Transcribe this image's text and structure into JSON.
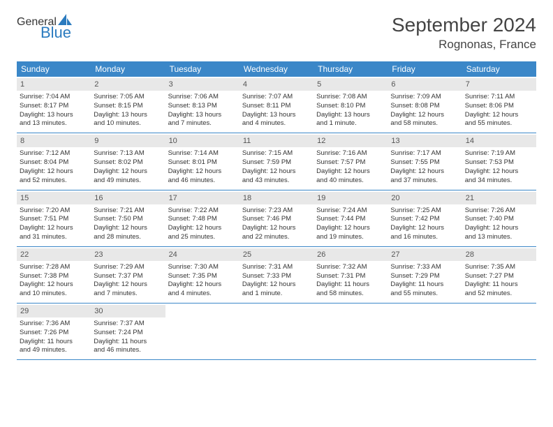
{
  "logo": {
    "top": "General",
    "bottom": "Blue",
    "icon_color": "#2b7bbf"
  },
  "title": "September 2024",
  "location": "Rognonas, France",
  "colors": {
    "header_bg": "#3b87c8",
    "header_text": "#ffffff",
    "daynum_bg": "#e8e8e8",
    "row_border": "#3b87c8"
  },
  "weekdays": [
    "Sunday",
    "Monday",
    "Tuesday",
    "Wednesday",
    "Thursday",
    "Friday",
    "Saturday"
  ],
  "weeks": [
    [
      {
        "n": "1",
        "sr": "Sunrise: 7:04 AM",
        "ss": "Sunset: 8:17 PM",
        "d1": "Daylight: 13 hours",
        "d2": "and 13 minutes."
      },
      {
        "n": "2",
        "sr": "Sunrise: 7:05 AM",
        "ss": "Sunset: 8:15 PM",
        "d1": "Daylight: 13 hours",
        "d2": "and 10 minutes."
      },
      {
        "n": "3",
        "sr": "Sunrise: 7:06 AM",
        "ss": "Sunset: 8:13 PM",
        "d1": "Daylight: 13 hours",
        "d2": "and 7 minutes."
      },
      {
        "n": "4",
        "sr": "Sunrise: 7:07 AM",
        "ss": "Sunset: 8:11 PM",
        "d1": "Daylight: 13 hours",
        "d2": "and 4 minutes."
      },
      {
        "n": "5",
        "sr": "Sunrise: 7:08 AM",
        "ss": "Sunset: 8:10 PM",
        "d1": "Daylight: 13 hours",
        "d2": "and 1 minute."
      },
      {
        "n": "6",
        "sr": "Sunrise: 7:09 AM",
        "ss": "Sunset: 8:08 PM",
        "d1": "Daylight: 12 hours",
        "d2": "and 58 minutes."
      },
      {
        "n": "7",
        "sr": "Sunrise: 7:11 AM",
        "ss": "Sunset: 8:06 PM",
        "d1": "Daylight: 12 hours",
        "d2": "and 55 minutes."
      }
    ],
    [
      {
        "n": "8",
        "sr": "Sunrise: 7:12 AM",
        "ss": "Sunset: 8:04 PM",
        "d1": "Daylight: 12 hours",
        "d2": "and 52 minutes."
      },
      {
        "n": "9",
        "sr": "Sunrise: 7:13 AM",
        "ss": "Sunset: 8:02 PM",
        "d1": "Daylight: 12 hours",
        "d2": "and 49 minutes."
      },
      {
        "n": "10",
        "sr": "Sunrise: 7:14 AM",
        "ss": "Sunset: 8:01 PM",
        "d1": "Daylight: 12 hours",
        "d2": "and 46 minutes."
      },
      {
        "n": "11",
        "sr": "Sunrise: 7:15 AM",
        "ss": "Sunset: 7:59 PM",
        "d1": "Daylight: 12 hours",
        "d2": "and 43 minutes."
      },
      {
        "n": "12",
        "sr": "Sunrise: 7:16 AM",
        "ss": "Sunset: 7:57 PM",
        "d1": "Daylight: 12 hours",
        "d2": "and 40 minutes."
      },
      {
        "n": "13",
        "sr": "Sunrise: 7:17 AM",
        "ss": "Sunset: 7:55 PM",
        "d1": "Daylight: 12 hours",
        "d2": "and 37 minutes."
      },
      {
        "n": "14",
        "sr": "Sunrise: 7:19 AM",
        "ss": "Sunset: 7:53 PM",
        "d1": "Daylight: 12 hours",
        "d2": "and 34 minutes."
      }
    ],
    [
      {
        "n": "15",
        "sr": "Sunrise: 7:20 AM",
        "ss": "Sunset: 7:51 PM",
        "d1": "Daylight: 12 hours",
        "d2": "and 31 minutes."
      },
      {
        "n": "16",
        "sr": "Sunrise: 7:21 AM",
        "ss": "Sunset: 7:50 PM",
        "d1": "Daylight: 12 hours",
        "d2": "and 28 minutes."
      },
      {
        "n": "17",
        "sr": "Sunrise: 7:22 AM",
        "ss": "Sunset: 7:48 PM",
        "d1": "Daylight: 12 hours",
        "d2": "and 25 minutes."
      },
      {
        "n": "18",
        "sr": "Sunrise: 7:23 AM",
        "ss": "Sunset: 7:46 PM",
        "d1": "Daylight: 12 hours",
        "d2": "and 22 minutes."
      },
      {
        "n": "19",
        "sr": "Sunrise: 7:24 AM",
        "ss": "Sunset: 7:44 PM",
        "d1": "Daylight: 12 hours",
        "d2": "and 19 minutes."
      },
      {
        "n": "20",
        "sr": "Sunrise: 7:25 AM",
        "ss": "Sunset: 7:42 PM",
        "d1": "Daylight: 12 hours",
        "d2": "and 16 minutes."
      },
      {
        "n": "21",
        "sr": "Sunrise: 7:26 AM",
        "ss": "Sunset: 7:40 PM",
        "d1": "Daylight: 12 hours",
        "d2": "and 13 minutes."
      }
    ],
    [
      {
        "n": "22",
        "sr": "Sunrise: 7:28 AM",
        "ss": "Sunset: 7:38 PM",
        "d1": "Daylight: 12 hours",
        "d2": "and 10 minutes."
      },
      {
        "n": "23",
        "sr": "Sunrise: 7:29 AM",
        "ss": "Sunset: 7:37 PM",
        "d1": "Daylight: 12 hours",
        "d2": "and 7 minutes."
      },
      {
        "n": "24",
        "sr": "Sunrise: 7:30 AM",
        "ss": "Sunset: 7:35 PM",
        "d1": "Daylight: 12 hours",
        "d2": "and 4 minutes."
      },
      {
        "n": "25",
        "sr": "Sunrise: 7:31 AM",
        "ss": "Sunset: 7:33 PM",
        "d1": "Daylight: 12 hours",
        "d2": "and 1 minute."
      },
      {
        "n": "26",
        "sr": "Sunrise: 7:32 AM",
        "ss": "Sunset: 7:31 PM",
        "d1": "Daylight: 11 hours",
        "d2": "and 58 minutes."
      },
      {
        "n": "27",
        "sr": "Sunrise: 7:33 AM",
        "ss": "Sunset: 7:29 PM",
        "d1": "Daylight: 11 hours",
        "d2": "and 55 minutes."
      },
      {
        "n": "28",
        "sr": "Sunrise: 7:35 AM",
        "ss": "Sunset: 7:27 PM",
        "d1": "Daylight: 11 hours",
        "d2": "and 52 minutes."
      }
    ],
    [
      {
        "n": "29",
        "sr": "Sunrise: 7:36 AM",
        "ss": "Sunset: 7:26 PM",
        "d1": "Daylight: 11 hours",
        "d2": "and 49 minutes."
      },
      {
        "n": "30",
        "sr": "Sunrise: 7:37 AM",
        "ss": "Sunset: 7:24 PM",
        "d1": "Daylight: 11 hours",
        "d2": "and 46 minutes."
      },
      null,
      null,
      null,
      null,
      null
    ]
  ]
}
